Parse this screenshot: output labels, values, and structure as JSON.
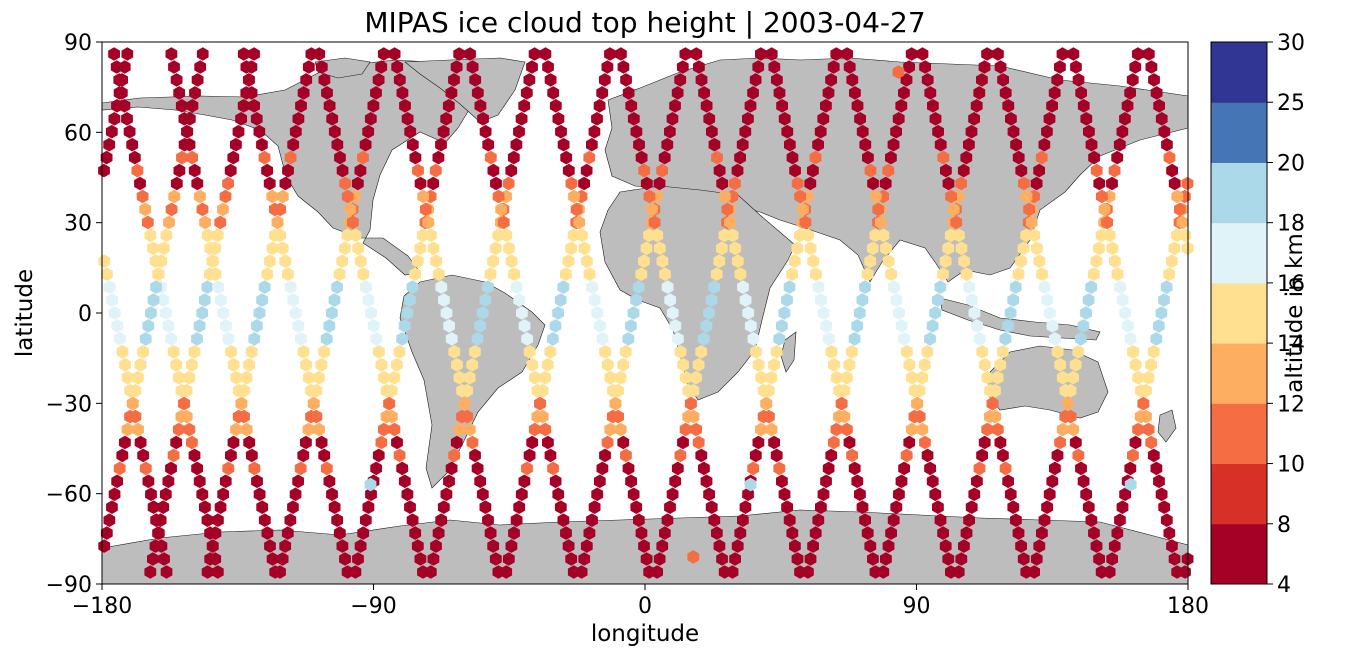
{
  "chart_data": {
    "type": "scatter",
    "marker": "hexagon",
    "title": "MIPAS ice cloud top height | 2003-04-27",
    "xlabel": "longitude",
    "ylabel": "latitude",
    "xlim": [
      -180,
      180
    ],
    "ylim": [
      -90,
      90
    ],
    "xticks": [
      -180,
      -90,
      0,
      90,
      180
    ],
    "xtick_labels": [
      "−180",
      "−90",
      "0",
      "90",
      "180"
    ],
    "yticks": [
      -90,
      -60,
      -30,
      0,
      30,
      60,
      90
    ],
    "ytick_labels": [
      "−90",
      "−60",
      "−30",
      "0",
      "30",
      "60",
      "90"
    ],
    "grid": false,
    "background_map": "coastlines-grey-land",
    "colorbar": {
      "label": "altitude in km",
      "position": "right",
      "boundaries": [
        4,
        8,
        10,
        12,
        14,
        16,
        18,
        20,
        25,
        30
      ],
      "tick_labels": [
        "4",
        "8",
        "10",
        "12",
        "14",
        "16",
        "18",
        "20",
        "25",
        "30"
      ],
      "colors": [
        "#a50026",
        "#d73027",
        "#f46d43",
        "#fdae61",
        "#fee090",
        "#ffffbf",
        "#e0f3f8",
        "#abd9e9",
        "#74add1",
        "#313695"
      ],
      "bin_colors": [
        "#a50026",
        "#d73027",
        "#f46d43",
        "#fdae61",
        "#fee090",
        "#e0f3f8",
        "#abd9e9",
        "#4575b4",
        "#313695"
      ]
    },
    "orbit_tracks": [
      {
        "start_lon": -176,
        "direction": "descending"
      },
      {
        "start_lon": -157,
        "direction": "descending"
      },
      {
        "start_lon": -133,
        "direction": "descending"
      },
      {
        "start_lon": -108,
        "direction": "descending"
      },
      {
        "start_lon": -83,
        "direction": "descending"
      },
      {
        "start_lon": -58,
        "direction": "descending"
      },
      {
        "start_lon": -33,
        "direction": "descending"
      },
      {
        "start_lon": -8,
        "direction": "descending"
      },
      {
        "start_lon": 17,
        "direction": "descending"
      },
      {
        "start_lon": 42,
        "direction": "descending"
      },
      {
        "start_lon": 67,
        "direction": "descending"
      },
      {
        "start_lon": 92,
        "direction": "descending"
      },
      {
        "start_lon": 117,
        "direction": "descending"
      },
      {
        "start_lon": 142,
        "direction": "descending"
      },
      {
        "start_lon": 167,
        "direction": "descending"
      }
    ],
    "notable_points": [
      {
        "lon": -91,
        "lat": -57,
        "altitude_km": 19
      },
      {
        "lon": 35,
        "lat": -57,
        "altitude_km": 19
      },
      {
        "lon": 161,
        "lat": -57,
        "altitude_km": 19
      },
      {
        "lon": 16,
        "lat": -81,
        "altitude_km": 11
      },
      {
        "lon": 84,
        "lat": 80,
        "altitude_km": 11
      }
    ]
  }
}
